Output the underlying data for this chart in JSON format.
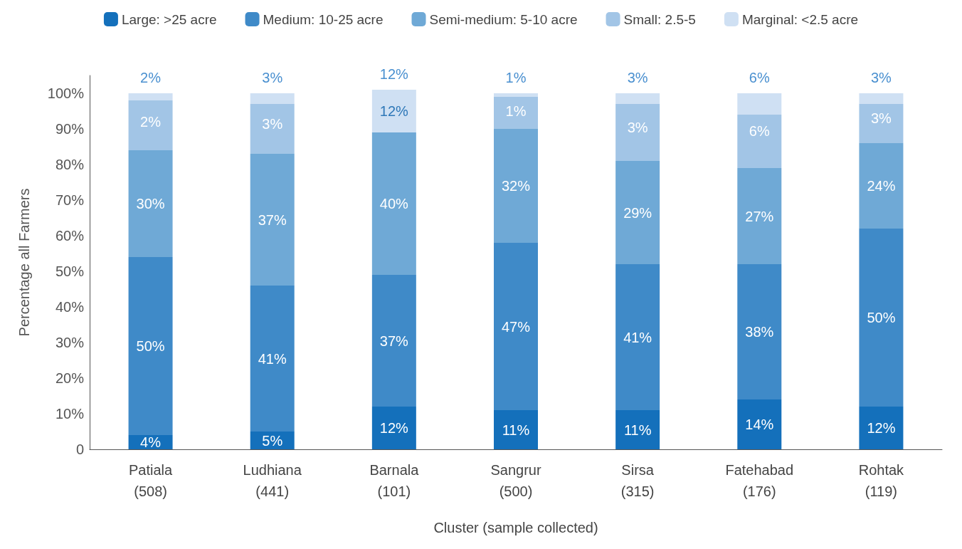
{
  "chart_data": {
    "type": "bar",
    "stacked": true,
    "xlabel": "Cluster (sample collected)",
    "ylabel": "Percentage all Farmers",
    "categories": [
      "Patiala\n(508)",
      "Ludhiana\n(441)",
      "Barnala\n(101)",
      "Sangrur\n(500)",
      "Sirsa\n(315)",
      "Fatehabad\n(176)",
      "Rohtak\n(119)"
    ],
    "series": [
      {
        "name": "Large: >25 acre",
        "color": "#1470bb",
        "values": [
          4,
          5,
          12,
          11,
          11,
          14,
          12
        ],
        "value_labels": [
          "4%",
          "5%",
          "12%",
          "11%",
          "11%",
          "14%",
          "12%"
        ]
      },
      {
        "name": "Medium: 10-25 acre",
        "color": "#3f8ac8",
        "values": [
          50,
          41,
          37,
          47,
          41,
          38,
          50
        ],
        "value_labels": [
          "50%",
          "41%",
          "37%",
          "47%",
          "41%",
          "38%",
          "50%"
        ]
      },
      {
        "name": "Semi-medium: 5-10 acre",
        "color": "#6fa9d6",
        "values": [
          30,
          37,
          40,
          32,
          29,
          27,
          24
        ],
        "value_labels": [
          "30%",
          "37%",
          "40%",
          "32%",
          "29%",
          "27%",
          "24%"
        ]
      },
      {
        "name": "Small: 2.5-5",
        "color": "#a2c5e6",
        "values": [
          14,
          14,
          0,
          9,
          16,
          15,
          11
        ]
      },
      {
        "name": "Marginal: <2.5 acre",
        "color": "#cfe0f3",
        "values": [
          2,
          3,
          12,
          1,
          3,
          6,
          3
        ],
        "value_labels": [
          "2%",
          "3%",
          "12%",
          "1%",
          "3%",
          "6%",
          "3%"
        ]
      }
    ],
    "annotations": [
      "2%",
      "3%",
      "12%",
      "1%",
      "3%",
      "6%",
      "3%"
    ],
    "ylim": [
      0,
      105
    ],
    "yticks": [
      {
        "value": 0,
        "label": "0"
      },
      {
        "value": 10,
        "label": "10%"
      },
      {
        "value": 20,
        "label": "20%"
      },
      {
        "value": 30,
        "label": "30%"
      },
      {
        "value": 40,
        "label": "40%"
      },
      {
        "value": 50,
        "label": "50%"
      },
      {
        "value": 60,
        "label": "60%"
      },
      {
        "value": 70,
        "label": "70%"
      },
      {
        "value": 80,
        "label": "80%"
      },
      {
        "value": 90,
        "label": "90%"
      },
      {
        "value": 100,
        "label": "100%"
      }
    ],
    "grid": false,
    "legend": "top"
  }
}
